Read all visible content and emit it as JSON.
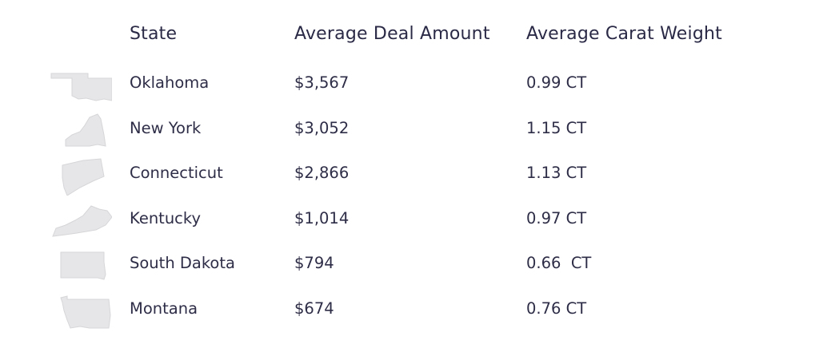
{
  "chart_data": {
    "type": "table",
    "columns": [
      "State",
      "Average Deal Amount",
      "Average Carat Weight"
    ],
    "rows": [
      {
        "state": "Oklahoma",
        "deal": "$3,567",
        "carat": "0.99 CT",
        "deal_value": 3567,
        "carat_value": 0.99,
        "icon": "oklahoma-shape-icon"
      },
      {
        "state": "New York",
        "deal": "$3,052",
        "carat": "1.15 CT",
        "deal_value": 3052,
        "carat_value": 1.15,
        "icon": "new-york-shape-icon"
      },
      {
        "state": "Connecticut",
        "deal": "$2,866",
        "carat": "1.13 CT",
        "deal_value": 2866,
        "carat_value": 1.13,
        "icon": "connecticut-shape-icon"
      },
      {
        "state": "Kentucky",
        "deal": "$1,014",
        "carat": "0.97 CT",
        "deal_value": 1014,
        "carat_value": 0.97,
        "icon": "kentucky-shape-icon"
      },
      {
        "state": "South Dakota",
        "deal": "$794",
        "carat": "0.66  CT",
        "deal_value": 794,
        "carat_value": 0.66,
        "icon": "south-dakota-shape-icon"
      },
      {
        "state": "Montana",
        "deal": "$674",
        "carat": "0.76 CT",
        "deal_value": 674,
        "carat_value": 0.76,
        "icon": "montana-shape-icon"
      }
    ]
  },
  "colors": {
    "text": "#2e2d47",
    "header": "#2a2946",
    "shape_fill": "#e6e6e8"
  }
}
